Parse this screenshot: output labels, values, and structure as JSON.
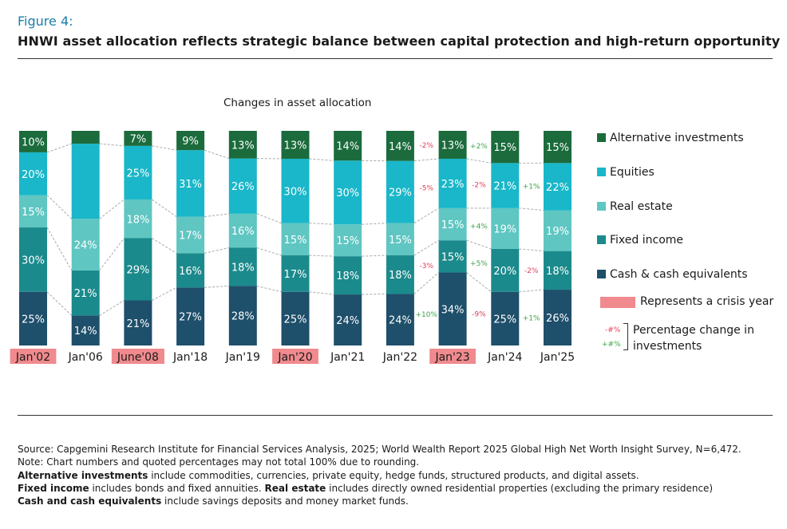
{
  "figure_label": "Figure 4:",
  "figure_title": "HNWI asset allocation reflects strategic balance between capital protection and high-return opportunity",
  "chart_data": {
    "type": "bar",
    "stacked": true,
    "title": "Changes in asset allocation",
    "categories": [
      "Jan'02",
      "Jan'06",
      "June'08",
      "Jan'18",
      "Jan'19",
      "Jan'20",
      "Jan'21",
      "Jan'22",
      "Jan'23",
      "Jan'24",
      "Jan'25"
    ],
    "crisis_years": [
      "Jan'02",
      "June'08",
      "Jan'20",
      "Jan'23"
    ],
    "series": [
      {
        "name": "Cash & cash equivalents",
        "color": "#1e4f6b",
        "values": [
          25,
          14,
          21,
          27,
          28,
          25,
          24,
          24,
          34,
          25,
          26
        ]
      },
      {
        "name": "Fixed income",
        "color": "#1b8a8c",
        "values": [
          30,
          21,
          29,
          16,
          18,
          17,
          18,
          18,
          15,
          20,
          18
        ]
      },
      {
        "name": "Real estate",
        "color": "#5fc6c2",
        "values": [
          15,
          24,
          18,
          17,
          16,
          15,
          15,
          15,
          15,
          19,
          19
        ]
      },
      {
        "name": "Equities",
        "color": "#19b7c9",
        "values": [
          20,
          35,
          25,
          31,
          26,
          30,
          30,
          29,
          23,
          21,
          22
        ]
      },
      {
        "name": "Alternative investments",
        "color": "#1b6b3c",
        "values": [
          10,
          6,
          7,
          9,
          13,
          13,
          14,
          14,
          13,
          15,
          15
        ]
      }
    ],
    "value_labels": [
      [
        "25%",
        "30%",
        "15%",
        "20%",
        "10%"
      ],
      [
        "14%",
        "21%",
        "24%",
        "",
        ""
      ],
      [
        "21%",
        "29%",
        "18%",
        "25%",
        "7%"
      ],
      [
        "27%",
        "16%",
        "17%",
        "31%",
        "9%"
      ],
      [
        "28%",
        "18%",
        "16%",
        "26%",
        "13%"
      ],
      [
        "25%",
        "17%",
        "15%",
        "30%",
        "13%"
      ],
      [
        "24%",
        "18%",
        "15%",
        "30%",
        "14%"
      ],
      [
        "24%",
        "18%",
        "15%",
        "29%",
        "14%"
      ],
      [
        "34%",
        "15%",
        "15%",
        "23%",
        "13%"
      ],
      [
        "25%",
        "20%",
        "19%",
        "21%",
        "15%"
      ],
      [
        "26%",
        "18%",
        "19%",
        "22%",
        "15%"
      ]
    ],
    "changes": [
      {
        "after": "Jan'22",
        "series": "Alternative investments",
        "text": "-2%",
        "dir": "neg"
      },
      {
        "after": "Jan'22",
        "series": "Equities",
        "text": "-5%",
        "dir": "neg"
      },
      {
        "after": "Jan'22",
        "series": "Fixed income",
        "text": "-3%",
        "dir": "neg"
      },
      {
        "after": "Jan'22",
        "series": "Cash & cash equivalents",
        "text": "+10%",
        "dir": "pos"
      },
      {
        "after": "Jan'23",
        "series": "Alternative investments",
        "text": "+2%",
        "dir": "pos"
      },
      {
        "after": "Jan'23",
        "series": "Equities",
        "text": "-2%",
        "dir": "neg"
      },
      {
        "after": "Jan'23",
        "series": "Real estate",
        "text": "+4%",
        "dir": "pos"
      },
      {
        "after": "Jan'23",
        "series": "Fixed income",
        "text": "+5%",
        "dir": "pos"
      },
      {
        "after": "Jan'23",
        "series": "Cash & cash equivalents",
        "text": "-9%",
        "dir": "neg"
      },
      {
        "after": "Jan'24",
        "series": "Equities",
        "text": "+1%",
        "dir": "pos"
      },
      {
        "after": "Jan'24",
        "series": "Fixed income",
        "text": "-2%",
        "dir": "neg"
      },
      {
        "after": "Jan'24",
        "series": "Cash & cash equivalents",
        "text": "+1%",
        "dir": "pos"
      }
    ],
    "colors": {
      "crisis": "#f08a8e",
      "positive": "#3fa64a",
      "negative": "#e0405a",
      "connector": "#aaaaaa"
    }
  },
  "legend": {
    "items": [
      {
        "label": "Alternative investments",
        "color": "#1b6b3c"
      },
      {
        "label": "Equities",
        "color": "#19b7c9"
      },
      {
        "label": "Real estate",
        "color": "#5fc6c2"
      },
      {
        "label": "Fixed income",
        "color": "#1b8a8c"
      },
      {
        "label": "Cash & cash equivalents",
        "color": "#1e4f6b"
      }
    ],
    "crisis_label": "Represents a crisis year",
    "pct_neg_sample": "-#%",
    "pct_pos_sample": "+#%",
    "pct_line1": "Percentage change in",
    "pct_line2": "investments"
  },
  "footnotes": {
    "source": "Source: Capgemini Research Institute for Financial Services Analysis, 2025; World Wealth Report 2025 Global High Net Worth Insight Survey, N=6,472.",
    "note": "Note: Chart numbers and quoted percentages may not total 100% due to rounding.",
    "alt_term": "Alternative investments",
    "alt_text": " include commodities, currencies, private equity, hedge funds, structured products, and digital assets.",
    "fi_term": "Fixed income",
    "fi_text": " includes bonds and fixed annuities. ",
    "re_term": "Real estate",
    "re_text": " includes directly owned residential properties (excluding the primary residence)",
    "cash_term": "Cash and cash equivalents",
    "cash_text": " include savings deposits and money market funds."
  }
}
